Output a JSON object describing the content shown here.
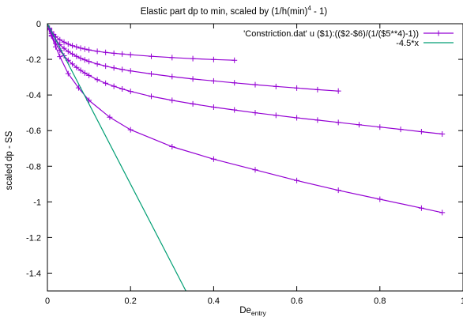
{
  "chart_data": {
    "type": "line",
    "title": "Elastic part dp to min, scaled by (1/h(min)",
    "title_sup": "4",
    "title_tail": " - 1)",
    "xlabel": "De",
    "xlabel_sub": "entry",
    "ylabel": "scaled dp - SS",
    "xlim": [
      0,
      1
    ],
    "ylim": [
      -1.5,
      0
    ],
    "xticks": [
      0,
      0.2,
      0.4,
      0.6,
      0.8,
      1
    ],
    "xtick_labels": [
      "0",
      "0.2",
      "0.4",
      "0.6",
      "0.8",
      "1"
    ],
    "yticks": [
      0,
      -0.2,
      -0.4,
      -0.6,
      -0.8,
      -1,
      -1.2,
      -1.4
    ],
    "ytick_labels": [
      "0",
      "-0.2",
      "-0.4",
      "-0.6",
      "-0.8",
      "-1",
      "-1.2",
      "-1.4"
    ],
    "grid": false,
    "legend_position": "top-right",
    "series": [
      {
        "name": "'Constriction.dat' u ($1):(($2-$6)/(1/($5**4)-1))",
        "color": "#9400d3",
        "marker": "plus",
        "curves": [
          [
            [
              0,
              0
            ],
            [
              0.005,
              -0.025
            ],
            [
              0.01,
              -0.045
            ],
            [
              0.015,
              -0.06
            ],
            [
              0.02,
              -0.072
            ],
            [
              0.03,
              -0.09
            ],
            [
              0.04,
              -0.103
            ],
            [
              0.05,
              -0.114
            ],
            [
              0.06,
              -0.123
            ],
            [
              0.07,
              -0.13
            ],
            [
              0.08,
              -0.137
            ],
            [
              0.09,
              -0.142
            ],
            [
              0.1,
              -0.147
            ],
            [
              0.12,
              -0.155
            ],
            [
              0.14,
              -0.161
            ],
            [
              0.16,
              -0.166
            ],
            [
              0.18,
              -0.17
            ],
            [
              0.2,
              -0.174
            ],
            [
              0.25,
              -0.183
            ],
            [
              0.3,
              -0.19
            ],
            [
              0.35,
              -0.196
            ],
            [
              0.4,
              -0.201
            ],
            [
              0.45,
              -0.205
            ]
          ],
          [
            [
              0,
              0
            ],
            [
              0.005,
              -0.03
            ],
            [
              0.01,
              -0.055
            ],
            [
              0.02,
              -0.09
            ],
            [
              0.03,
              -0.117
            ],
            [
              0.04,
              -0.138
            ],
            [
              0.05,
              -0.156
            ],
            [
              0.06,
              -0.17
            ],
            [
              0.07,
              -0.183
            ],
            [
              0.08,
              -0.194
            ],
            [
              0.09,
              -0.203
            ],
            [
              0.1,
              -0.212
            ],
            [
              0.12,
              -0.226
            ],
            [
              0.14,
              -0.238
            ],
            [
              0.16,
              -0.248
            ],
            [
              0.18,
              -0.257
            ],
            [
              0.2,
              -0.265
            ],
            [
              0.25,
              -0.282
            ],
            [
              0.3,
              -0.297
            ],
            [
              0.35,
              -0.31
            ],
            [
              0.4,
              -0.321
            ],
            [
              0.45,
              -0.332
            ],
            [
              0.5,
              -0.342
            ],
            [
              0.55,
              -0.352
            ],
            [
              0.6,
              -0.361
            ],
            [
              0.65,
              -0.37
            ],
            [
              0.7,
              -0.378
            ]
          ],
          [
            [
              0,
              0
            ],
            [
              0.005,
              -0.035
            ],
            [
              0.01,
              -0.065
            ],
            [
              0.02,
              -0.11
            ],
            [
              0.03,
              -0.15
            ],
            [
              0.04,
              -0.18
            ],
            [
              0.05,
              -0.205
            ],
            [
              0.06,
              -0.226
            ],
            [
              0.07,
              -0.245
            ],
            [
              0.08,
              -0.262
            ],
            [
              0.09,
              -0.277
            ],
            [
              0.1,
              -0.29
            ],
            [
              0.12,
              -0.314
            ],
            [
              0.14,
              -0.334
            ],
            [
              0.16,
              -0.351
            ],
            [
              0.18,
              -0.366
            ],
            [
              0.2,
              -0.38
            ],
            [
              0.25,
              -0.408
            ],
            [
              0.3,
              -0.43
            ],
            [
              0.35,
              -0.45
            ],
            [
              0.4,
              -0.468
            ],
            [
              0.45,
              -0.484
            ],
            [
              0.5,
              -0.5
            ],
            [
              0.55,
              -0.514
            ],
            [
              0.6,
              -0.528
            ],
            [
              0.65,
              -0.541
            ],
            [
              0.7,
              -0.554
            ],
            [
              0.75,
              -0.567
            ],
            [
              0.8,
              -0.58
            ],
            [
              0.85,
              -0.593
            ],
            [
              0.9,
              -0.606
            ],
            [
              0.95,
              -0.619
            ]
          ],
          [
            [
              0,
              0
            ],
            [
              0.01,
              -0.07
            ],
            [
              0.02,
              -0.13
            ],
            [
              0.03,
              -0.185
            ],
            [
              0.05,
              -0.28
            ],
            [
              0.075,
              -0.36
            ],
            [
              0.1,
              -0.43
            ],
            [
              0.15,
              -0.525
            ],
            [
              0.2,
              -0.595
            ],
            [
              0.3,
              -0.69
            ],
            [
              0.4,
              -0.76
            ],
            [
              0.5,
              -0.82
            ],
            [
              0.6,
              -0.88
            ],
            [
              0.7,
              -0.935
            ],
            [
              0.8,
              -0.985
            ],
            [
              0.9,
              -1.035
            ],
            [
              0.95,
              -1.06
            ]
          ]
        ]
      },
      {
        "name": "-4.5*x",
        "color": "#009e73",
        "marker": "none",
        "curves": [
          [
            [
              0,
              0
            ],
            [
              0.3333,
              -1.5
            ]
          ]
        ]
      }
    ]
  }
}
